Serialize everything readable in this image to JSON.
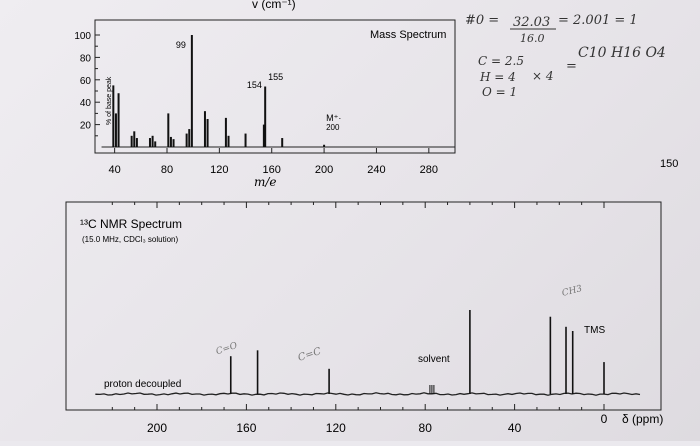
{
  "header_fragment": "v (cm⁻¹)",
  "handwritten_formula": {
    "line1_left": "#0 =",
    "line1_fraction_num": "32.03",
    "line1_fraction_den": "16.0",
    "line1_result": "= 2.001 = 1",
    "c_line": "C = 2.5",
    "h_line": "H = 4",
    "o_line": "O = 1",
    "multiplier": "× 4",
    "equals": "=",
    "formula": "C10 H16 O4"
  },
  "ir_edge_tick": "150",
  "chart_data": [
    {
      "type": "bar",
      "title": "Mass Spectrum",
      "xlabel": "m/e",
      "ylabel": "% of base peak",
      "xlim": [
        25,
        300
      ],
      "ylim": [
        0,
        100
      ],
      "x_ticks": [
        "40",
        "80",
        "120",
        "160",
        "200",
        "240",
        "280"
      ],
      "y_ticks": [
        "20",
        "40",
        "60",
        "80",
        "100"
      ],
      "x": [
        39,
        41,
        43,
        53,
        55,
        57,
        67,
        69,
        71,
        81,
        83,
        85,
        95,
        97,
        99,
        109,
        111,
        125,
        127,
        140,
        154,
        155,
        168,
        200
      ],
      "values": [
        55,
        30,
        48,
        10,
        14,
        8,
        8,
        10,
        5,
        30,
        9,
        7,
        12,
        16,
        100,
        32,
        25,
        26,
        10,
        12,
        20,
        54,
        8,
        2
      ],
      "annotations": [
        {
          "label": "99",
          "x": 99
        },
        {
          "label": "154",
          "x": 154
        },
        {
          "label": "155",
          "x": 155
        },
        {
          "label": "M⁺·",
          "x": 200
        },
        {
          "label": "200",
          "x": 200
        }
      ]
    },
    {
      "type": "line",
      "title": "¹³C NMR Spectrum",
      "subtitle": "(15.0 MHz, CDCl₃ solution)",
      "xlabel": "δ (ppm)",
      "x_ticks": [
        "200",
        "160",
        "120",
        "80",
        "40",
        "0"
      ],
      "xlim": [
        220,
        0
      ],
      "labels": {
        "proton": "proton decoupled",
        "solvent": "solvent",
        "tms": "TMS"
      },
      "handwritten_labels": {
        "carbonyl": "C=O",
        "alkene": "C=C",
        "methyl": "CH3"
      },
      "peaks": [
        {
          "ppm": 167,
          "height": 0.45
        },
        {
          "ppm": 155,
          "height": 0.52
        },
        {
          "ppm": 123,
          "height": 0.3
        },
        {
          "ppm": 77,
          "height": 0.05
        },
        {
          "ppm": 60,
          "height": 1.0
        },
        {
          "ppm": 24,
          "height": 0.92
        },
        {
          "ppm": 17,
          "height": 0.8
        },
        {
          "ppm": 14,
          "height": 0.75
        },
        {
          "ppm": 0,
          "height": 0.38
        }
      ]
    }
  ]
}
